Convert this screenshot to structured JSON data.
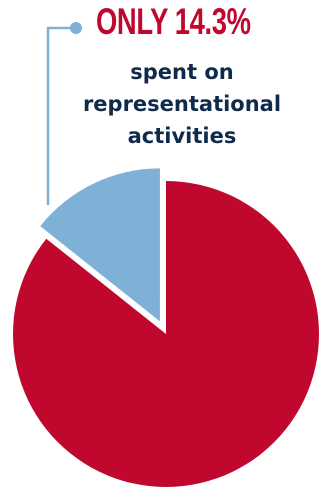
{
  "chart_data": {
    "type": "pie",
    "slices": [
      {
        "name": "",
        "value": 14.3,
        "color": "#7fb0d5",
        "exploded": true
      },
      {
        "name": "",
        "value": 85.7,
        "color": "#c0082f",
        "exploded": false
      }
    ],
    "start": "12 o'clock, counterclockwise",
    "callout": {
      "headline": "ONLY 14.3%",
      "lines": [
        "spent on",
        "representational",
        "activities"
      ],
      "color": "#c0082f",
      "text_color": "#0f2a4a",
      "leader_color": "#7fb0d5"
    }
  }
}
